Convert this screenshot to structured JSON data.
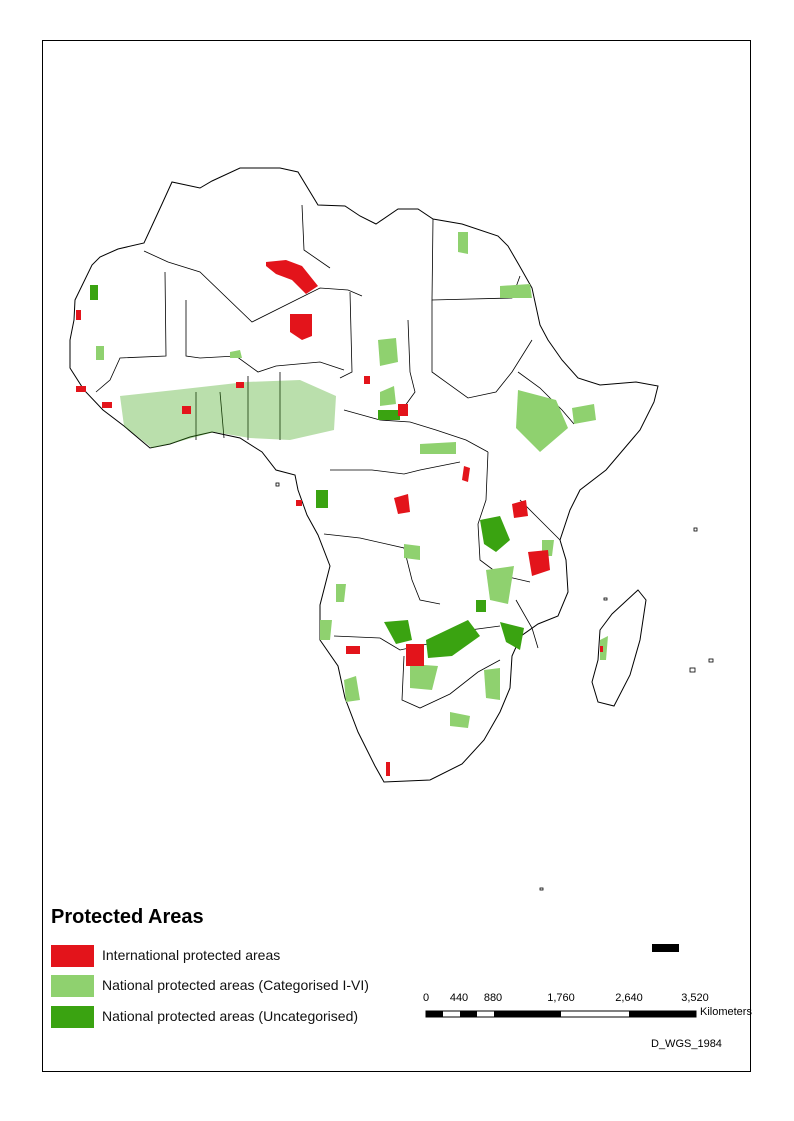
{
  "colors": {
    "international": "#e3141b",
    "national_categorised": "#8fd16f",
    "national_uncategorised": "#3aa311",
    "border": "#000000",
    "land": "#ffffff"
  },
  "legend": {
    "title": "Protected Areas",
    "items": [
      {
        "label": "International protected areas",
        "color": "#e3141b"
      },
      {
        "label": "National protected areas (Categorised I-VI)",
        "color": "#8fd16f"
      },
      {
        "label": "National protected areas (Uncategorised)",
        "color": "#3aa311"
      }
    ]
  },
  "scale_bar": {
    "ticks": [
      "0",
      "440",
      "880",
      "1,760",
      "2,640",
      "3,520"
    ],
    "unit": "Kilometers"
  },
  "datum": "D_WGS_1984"
}
